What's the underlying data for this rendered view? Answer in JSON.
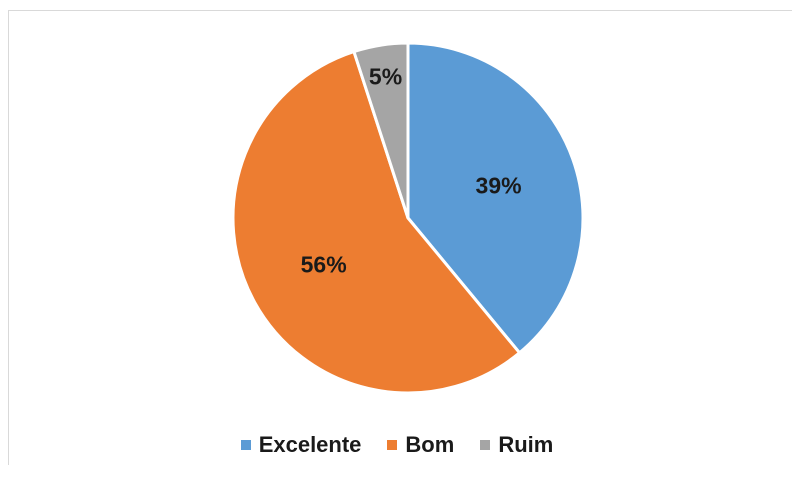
{
  "chart_data": {
    "type": "pie",
    "categories": [
      "Excelente",
      "Bom",
      "Ruim"
    ],
    "values": [
      39,
      56,
      5
    ],
    "labels": [
      "39%",
      "56%",
      "5%"
    ],
    "colors": [
      "#5b9bd5",
      "#ed7d31",
      "#a5a5a5"
    ],
    "legend_position": "bottom",
    "start_angle_deg": 0,
    "direction": "clockwise"
  }
}
